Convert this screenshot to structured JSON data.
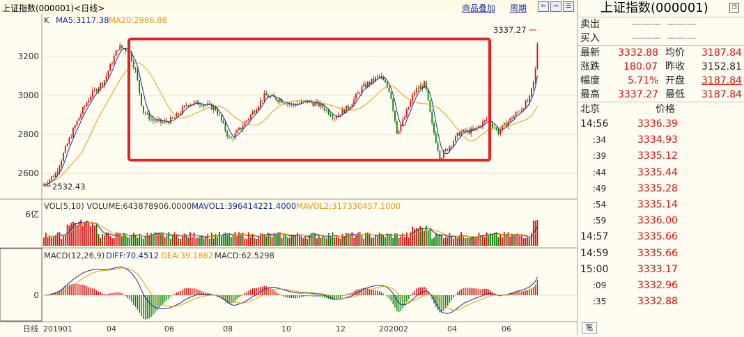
{
  "toolbar": {
    "title": "上证指数(000001)<日线>",
    "overlay_link": "商品叠加",
    "period_link": "周期",
    "btn_prev": "⇦",
    "btn_next": "⇨",
    "btn_menu": "☰"
  },
  "main_panel": {
    "series_label": "K",
    "ma5_label": "MA5:3117.38",
    "ma20_label": "MA20:2986.88",
    "high_annotation": "3337.27",
    "low_annotation": "2532.43",
    "y_ticks": [
      "3200",
      "3000",
      "2800",
      "2600"
    ],
    "colors": {
      "up": "#d01010",
      "down": "#008000",
      "ma5": "#1a2a88",
      "ma20": "#e59a10",
      "highlight": "#e82020"
    }
  },
  "volume_panel": {
    "label": "VOL(5,10) VOLUME:643878906.0000",
    "mavol1": "MAVOL1:396414221.4000",
    "mavol2": "MAVOL2:317330457.1000",
    "y_tick": "6亿"
  },
  "macd_panel": {
    "label": "MACD(12,26,9)",
    "diff": "DIFF:70.4512",
    "dea": "DEA:39.1862",
    "macd": "MACD:62.5298",
    "y_tick": "0"
  },
  "x_axis": {
    "period_label": "日线",
    "ticks": [
      "201901",
      "04",
      "06",
      "08",
      "10",
      "12",
      "202002",
      "04",
      "06"
    ]
  },
  "quote": {
    "title": "上证指数(000001)",
    "sell_label": "卖出",
    "sell_v1": "———",
    "sell_v2": "———",
    "buy_label": "买入",
    "buy_v1": "———",
    "buy_v2": "———",
    "rows": [
      {
        "l1": "最新",
        "v1": "3332.88",
        "l2": "均价",
        "v2": "3187.84"
      },
      {
        "l1": "涨跌",
        "v1": "180.07",
        "l2": "昨收",
        "v2": "3152.81"
      },
      {
        "l1": "幅度",
        "v1": "5.71%",
        "l2": "开盘",
        "v2": "3187.84"
      },
      {
        "l1": "最高",
        "v1": "3337.27",
        "l2": "最低",
        "v2": "3187.84"
      }
    ]
  },
  "ticks_list": {
    "col_time": "北京",
    "col_price": "价格",
    "rows": [
      {
        "time": "14:56",
        "price": "3336.39"
      },
      {
        "time": ":34",
        "price": "3334.93"
      },
      {
        "time": ":39",
        "price": "3335.12"
      },
      {
        "time": ":44",
        "price": "3335.44"
      },
      {
        "time": ":49",
        "price": "3335.28"
      },
      {
        "time": ":54",
        "price": "3335.14"
      },
      {
        "time": ":59",
        "price": "3336.00"
      },
      {
        "time": "14:57",
        "price": "3335.66"
      },
      {
        "time": "14:59",
        "price": "3335.66"
      },
      {
        "time": "15:00",
        "price": "3333.17"
      },
      {
        "time": ":09",
        "price": "3332.96"
      },
      {
        "time": ":35",
        "price": "3332.88"
      }
    ]
  },
  "bottom_tab": "笔"
}
